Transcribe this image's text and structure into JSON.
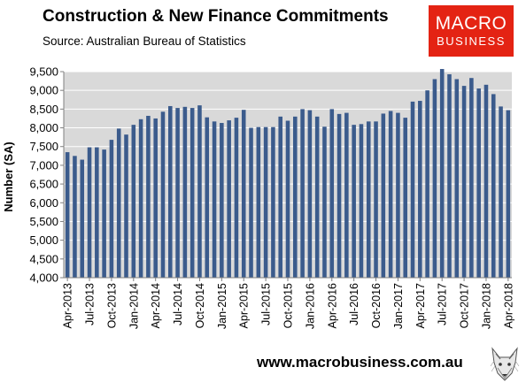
{
  "header": {
    "title": "Construction & New Finance Commitments",
    "subtitle": "Source: Australian Bureau of Statistics"
  },
  "logo": {
    "line1": "MACRO",
    "line2": "BUSINESS",
    "color": "#e42313"
  },
  "footer": {
    "url": "www.macrobusiness.com.au"
  },
  "chart_data": {
    "type": "bar",
    "ylabel": "Number (SA)",
    "xlabel": "",
    "ylim": [
      4000,
      9500
    ],
    "yticks": [
      4000,
      4500,
      5000,
      5500,
      6000,
      6500,
      7000,
      7500,
      8000,
      8500,
      9000,
      9500
    ],
    "ytick_labels": [
      "4,000",
      "4,500",
      "5,000",
      "5,500",
      "6,000",
      "6,500",
      "7,000",
      "7,500",
      "8,000",
      "8,500",
      "9,000",
      "9,500"
    ],
    "grid": true,
    "bar_color": "#3b5b8c",
    "categories": [
      "Apr-2013",
      "May-2013",
      "Jun-2013",
      "Jul-2013",
      "Aug-2013",
      "Sep-2013",
      "Oct-2013",
      "Nov-2013",
      "Dec-2013",
      "Jan-2014",
      "Feb-2014",
      "Mar-2014",
      "Apr-2014",
      "May-2014",
      "Jun-2014",
      "Jul-2014",
      "Aug-2014",
      "Sep-2014",
      "Oct-2014",
      "Nov-2014",
      "Dec-2014",
      "Jan-2015",
      "Feb-2015",
      "Mar-2015",
      "Apr-2015",
      "May-2015",
      "Jun-2015",
      "Jul-2015",
      "Aug-2015",
      "Sep-2015",
      "Oct-2015",
      "Nov-2015",
      "Dec-2015",
      "Jan-2016",
      "Feb-2016",
      "Mar-2016",
      "Apr-2016",
      "May-2016",
      "Jun-2016",
      "Jul-2016",
      "Aug-2016",
      "Sep-2016",
      "Oct-2016",
      "Nov-2016",
      "Dec-2016",
      "Jan-2017",
      "Feb-2017",
      "Mar-2017",
      "Apr-2017",
      "May-2017",
      "Jun-2017",
      "Jul-2017",
      "Aug-2017",
      "Sep-2017",
      "Oct-2017",
      "Nov-2017",
      "Dec-2017",
      "Jan-2018",
      "Feb-2018",
      "Mar-2018",
      "Apr-2018"
    ],
    "tick_labels": [
      "Apr-2013",
      "Jul-2013",
      "Oct-2013",
      "Jan-2014",
      "Apr-2014",
      "Jul-2014",
      "Oct-2014",
      "Jan-2015",
      "Apr-2015",
      "Jul-2015",
      "Oct-2015",
      "Jan-2016",
      "Apr-2016",
      "Jul-2016",
      "Oct-2016",
      "Jan-2017",
      "Apr-2017",
      "Jul-2017",
      "Oct-2017",
      "Jan-2018",
      "Apr-2018"
    ],
    "values": [
      7350,
      7250,
      7150,
      7480,
      7480,
      7420,
      7680,
      7980,
      7820,
      8080,
      8230,
      8320,
      8250,
      8430,
      8580,
      8530,
      8560,
      8530,
      8600,
      8280,
      8170,
      8130,
      8200,
      8270,
      8480,
      8000,
      8020,
      8020,
      8020,
      8300,
      8190,
      8300,
      8500,
      8470,
      8300,
      8030,
      8500,
      8370,
      8400,
      8080,
      8100,
      8170,
      8170,
      8380,
      8450,
      8400,
      8270,
      8700,
      8720,
      9000,
      9300,
      9570,
      9430,
      9300,
      9120,
      9330,
      9050,
      9150,
      8900,
      8570,
      8470
    ]
  }
}
